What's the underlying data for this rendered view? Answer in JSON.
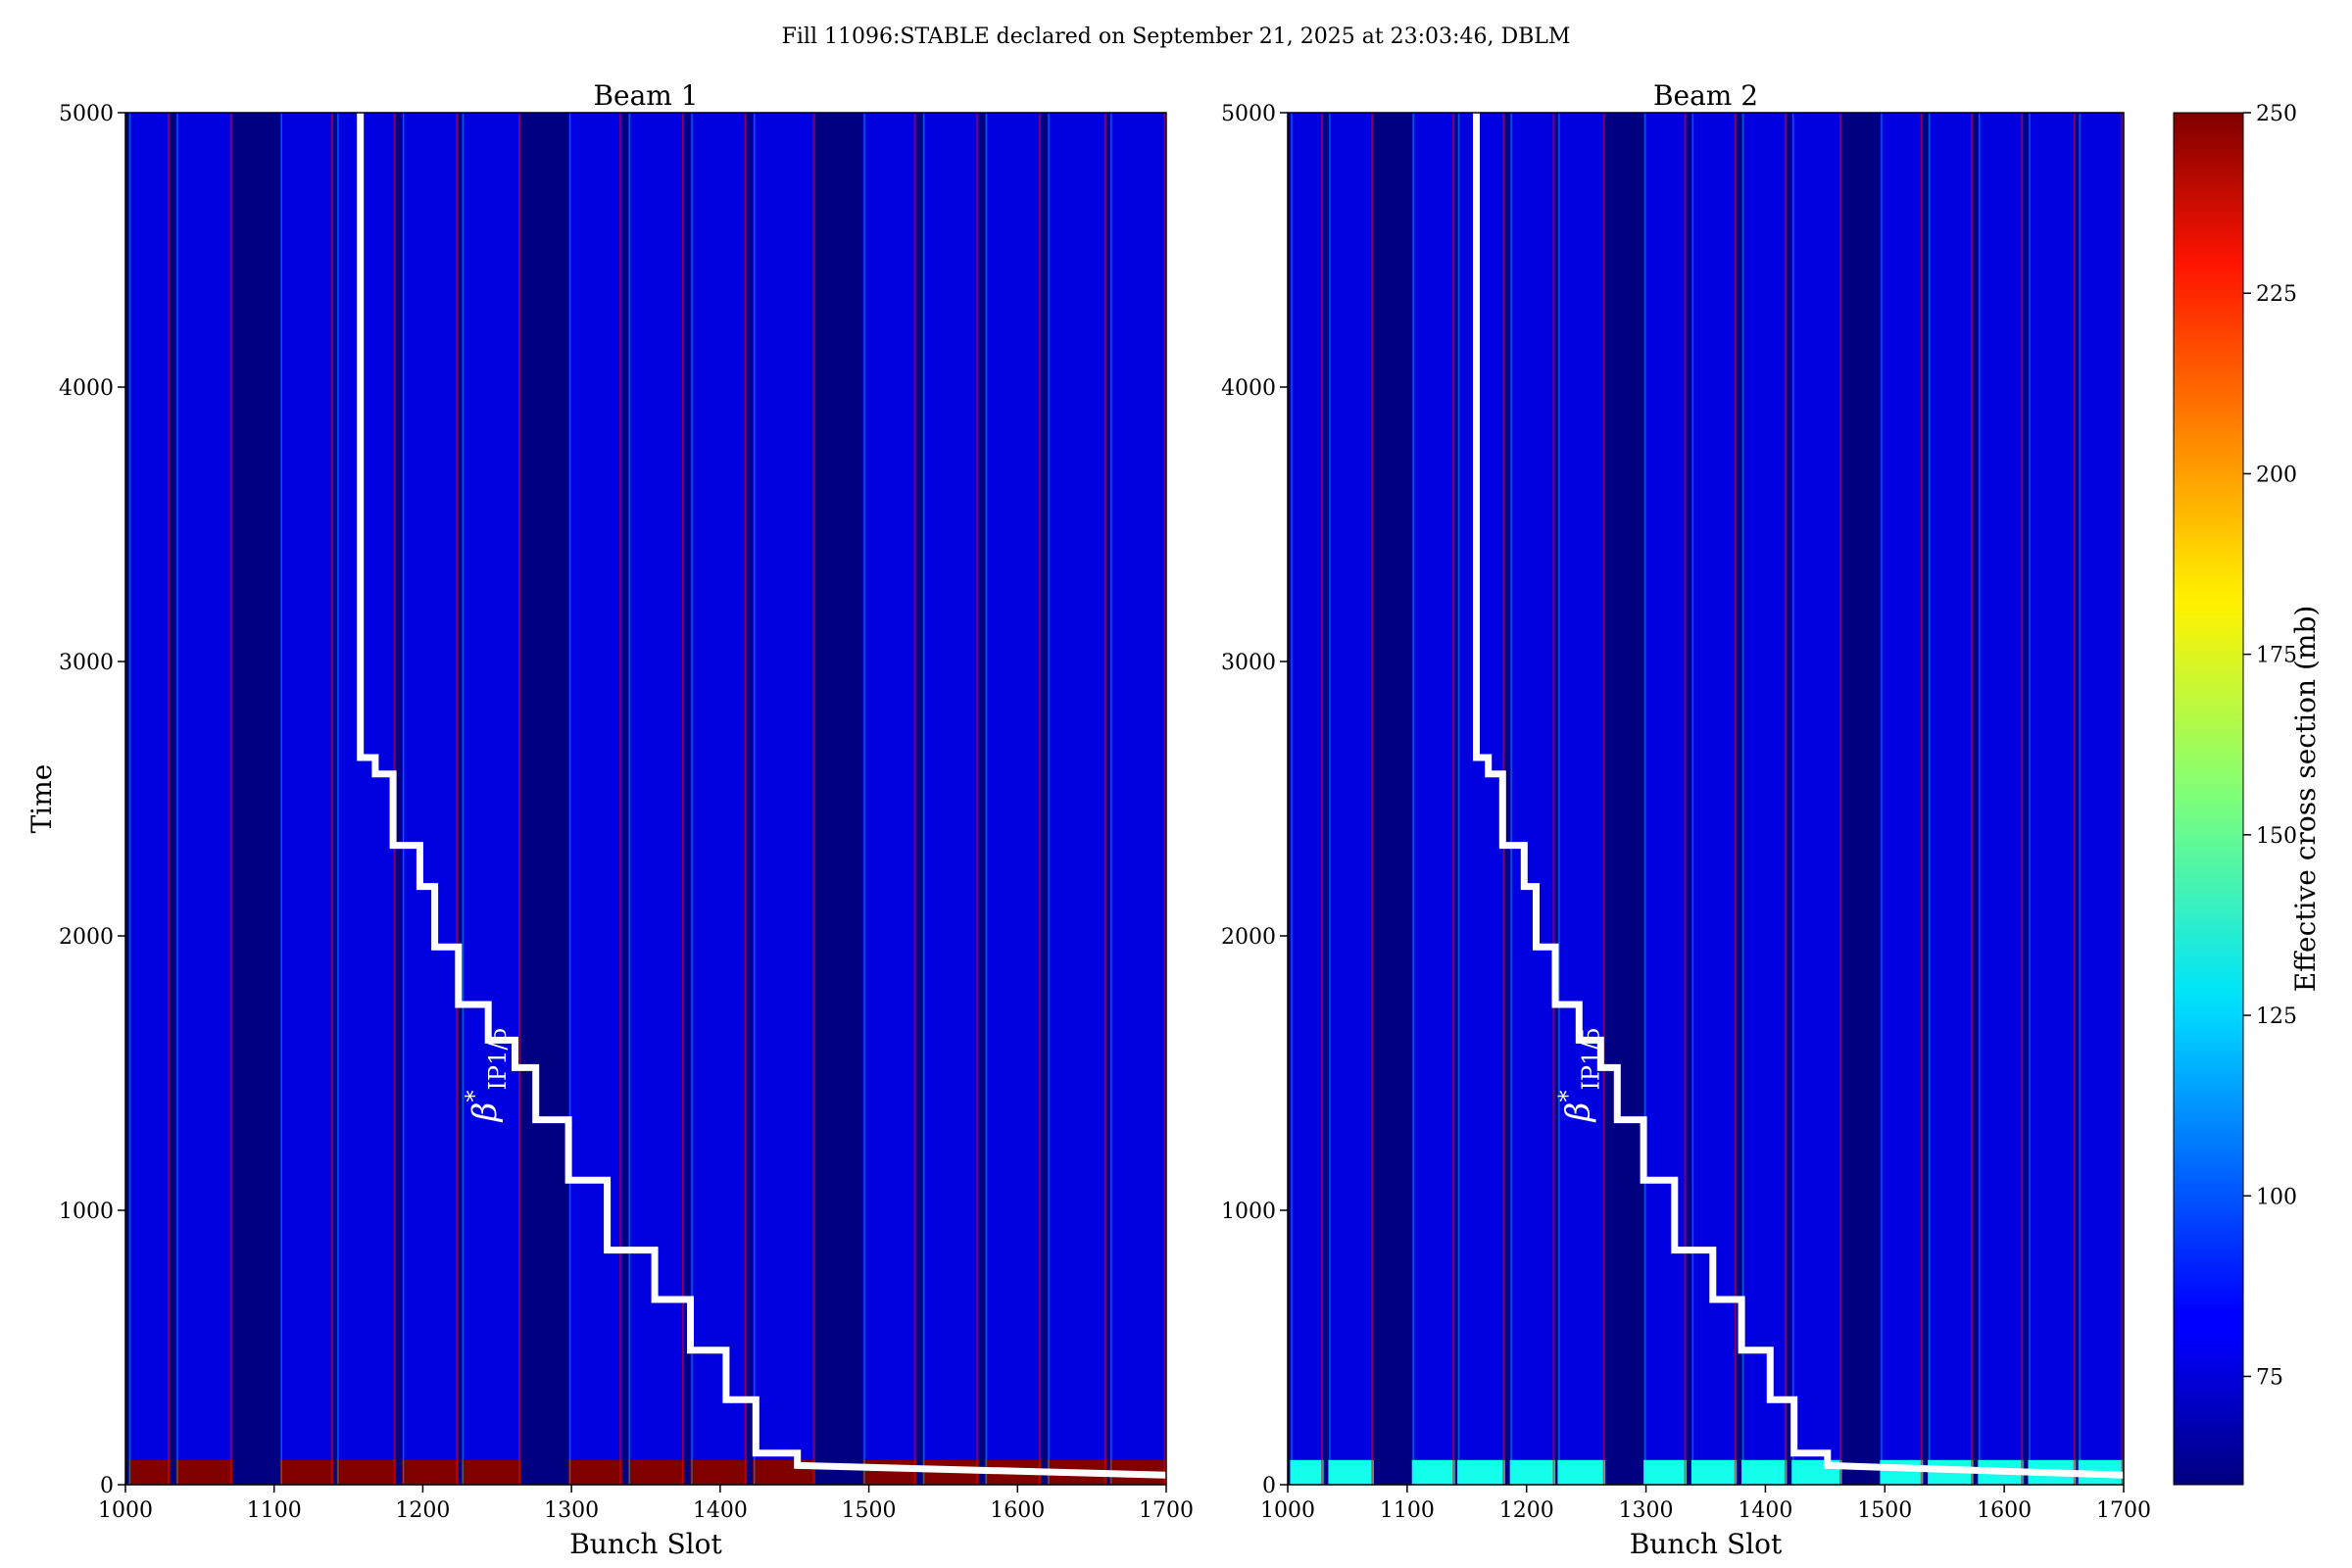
{
  "chart_data": {
    "type": "heatmap",
    "title": "Fill 11096:STABLE declared on September 21, 2025 at 23:03:46, DBLM",
    "colorbar": {
      "label": "Effective cross section (mb)",
      "range": [
        60,
        250
      ],
      "ticks": [
        75,
        100,
        125,
        150,
        175,
        200,
        225,
        250
      ],
      "colormap": "jet"
    },
    "beta_label": {
      "main": "β",
      "sup": "*",
      "sub": "IP1/5"
    },
    "background_value": 78,
    "train_slots": [
      [
        1002,
        1030
      ],
      [
        1034,
        1072
      ],
      [
        1104,
        1140
      ],
      [
        1142,
        1182
      ],
      [
        1186,
        1224
      ],
      [
        1226,
        1266
      ],
      [
        1298,
        1334
      ],
      [
        1338,
        1376
      ],
      [
        1380,
        1418
      ],
      [
        1422,
        1464
      ],
      [
        1496,
        1532
      ],
      [
        1536,
        1574
      ],
      [
        1578,
        1616
      ],
      [
        1620,
        1660
      ],
      [
        1662,
        1700
      ]
    ],
    "beta_step_curve": [
      [
        1158,
        5000
      ],
      [
        1158,
        2650
      ],
      [
        1168,
        2650
      ],
      [
        1168,
        2590
      ],
      [
        1180,
        2590
      ],
      [
        1180,
        2330
      ],
      [
        1198,
        2330
      ],
      [
        1198,
        2180
      ],
      [
        1208,
        2180
      ],
      [
        1208,
        1960
      ],
      [
        1224,
        1960
      ],
      [
        1224,
        1750
      ],
      [
        1244,
        1750
      ],
      [
        1244,
        1620
      ],
      [
        1262,
        1620
      ],
      [
        1262,
        1520
      ],
      [
        1276,
        1520
      ],
      [
        1276,
        1330
      ],
      [
        1298,
        1330
      ],
      [
        1298,
        1110
      ],
      [
        1324,
        1110
      ],
      [
        1324,
        855
      ],
      [
        1356,
        855
      ],
      [
        1356,
        675
      ],
      [
        1380,
        675
      ],
      [
        1380,
        490
      ],
      [
        1404,
        490
      ],
      [
        1404,
        310
      ],
      [
        1424,
        310
      ],
      [
        1424,
        115
      ],
      [
        1452,
        115
      ],
      [
        1452,
        70
      ],
      [
        1700,
        35
      ]
    ],
    "panels": [
      {
        "title": "Beam 1",
        "xlabel": "Bunch Slot",
        "ylabel": "Time",
        "xlim": [
          1000,
          1700
        ],
        "ylim": [
          0,
          5000
        ],
        "xticks": [
          1000,
          1100,
          1200,
          1300,
          1400,
          1500,
          1600,
          1700
        ],
        "yticks": [
          0,
          1000,
          2000,
          3000,
          4000,
          5000
        ],
        "early_time_value": 250
      },
      {
        "title": "Beam 2",
        "xlabel": "Bunch Slot",
        "ylabel": "",
        "xlim": [
          1000,
          1700
        ],
        "ylim": [
          0,
          5000
        ],
        "xticks": [
          1000,
          1100,
          1200,
          1300,
          1400,
          1500,
          1600,
          1700
        ],
        "yticks": [
          0,
          1000,
          2000,
          3000,
          4000,
          5000
        ],
        "early_time_value": 135
      }
    ]
  }
}
